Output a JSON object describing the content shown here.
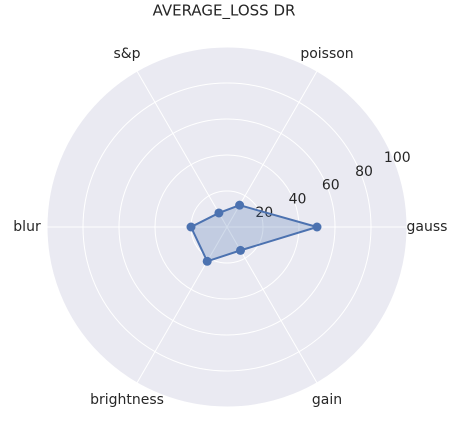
{
  "chart_data": {
    "type": "radar",
    "title": "AVERAGE_LOSS DR",
    "categories": [
      "gauss",
      "poisson",
      "s&p",
      "blur",
      "brightness",
      "gain"
    ],
    "values": [
      50,
      14,
      9,
      20,
      22,
      15
    ],
    "color": "#4c72b0",
    "ylim": [
      0,
      100
    ],
    "yticks": [
      20,
      40,
      60,
      80,
      100
    ],
    "grid": true
  }
}
